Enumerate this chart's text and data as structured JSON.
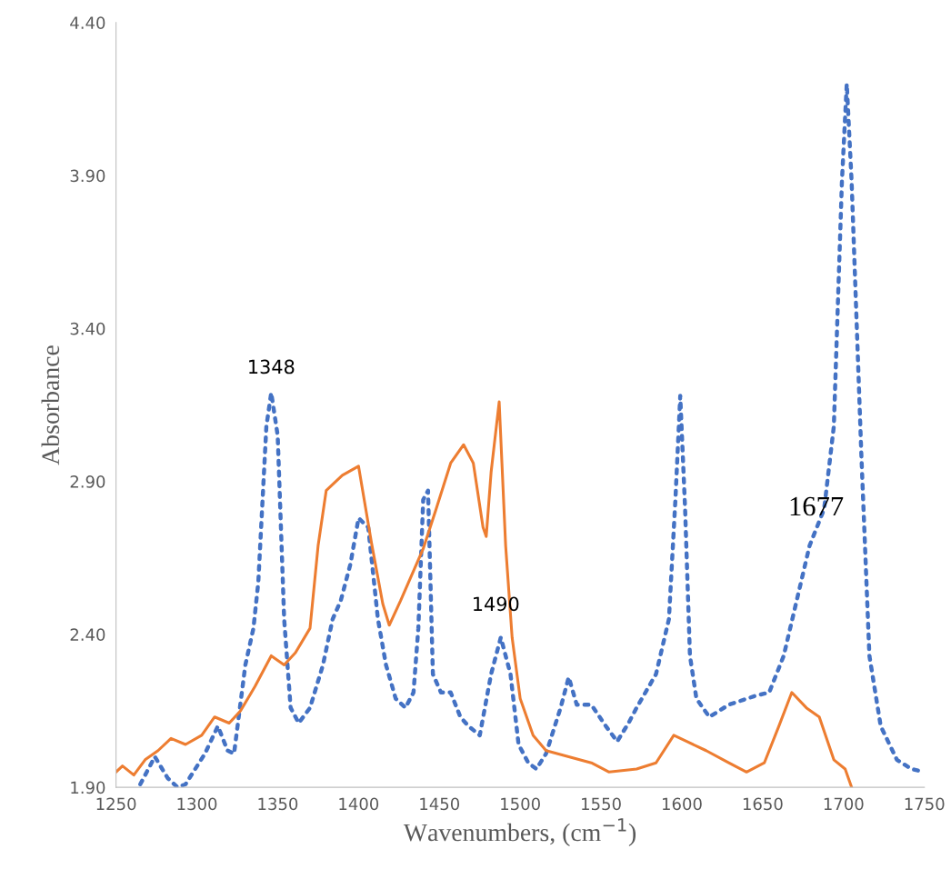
{
  "chart_data": {
    "type": "line",
    "xlabel": "Wavenumbers, (cm$^{−1}$)",
    "ylabel": "Absorbance",
    "xlim": [
      1250,
      1750
    ],
    "xticks": [
      1250,
      1300,
      1350,
      1400,
      1450,
      1500,
      1550,
      1600,
      1650,
      1700,
      1750
    ],
    "ylim": [
      1.9,
      4.4
    ],
    "yticks": [
      {
        "value": 1.9,
        "label": "1.90"
      },
      {
        "value": 2.4,
        "label": "2.40"
      },
      {
        "value": 2.9,
        "label": "2.90"
      },
      {
        "value": 3.4,
        "label": "3.40"
      },
      {
        "value": 3.9,
        "label": "3.90"
      },
      {
        "value": 4.4,
        "label": "4.40"
      }
    ],
    "grid": false,
    "marker": "none",
    "series": [
      {
        "color": "#4472c4",
        "line_style": "dotted",
        "x": [
          1265,
          1274,
          1282,
          1288,
          1293,
          1305,
          1313,
          1319,
          1323,
          1330,
          1335,
          1338,
          1343,
          1346,
          1350,
          1354,
          1358,
          1363,
          1370,
          1378,
          1384,
          1389,
          1395,
          1400,
          1406,
          1412,
          1417,
          1423,
          1429,
          1434,
          1437,
          1440,
          1443,
          1446,
          1451,
          1457,
          1463,
          1468,
          1475,
          1482,
          1488,
          1494,
          1499,
          1505,
          1510,
          1516,
          1525,
          1530,
          1535,
          1544,
          1553,
          1560,
          1567,
          1572,
          1584,
          1592,
          1596,
          1599,
          1602,
          1605,
          1609,
          1617,
          1629,
          1646,
          1654,
          1663,
          1671,
          1679,
          1688,
          1694,
          1699,
          1702,
          1705,
          1711,
          1716,
          1723,
          1733,
          1742,
          1750
        ],
        "values": [
          1.91,
          2.0,
          1.93,
          1.9,
          1.91,
          2.01,
          2.1,
          2.02,
          2.01,
          2.3,
          2.42,
          2.57,
          3.08,
          3.19,
          3.05,
          2.45,
          2.16,
          2.11,
          2.16,
          2.3,
          2.45,
          2.51,
          2.63,
          2.78,
          2.75,
          2.45,
          2.3,
          2.19,
          2.16,
          2.21,
          2.42,
          2.84,
          2.87,
          2.27,
          2.21,
          2.21,
          2.13,
          2.1,
          2.07,
          2.27,
          2.39,
          2.27,
          2.04,
          1.98,
          1.96,
          2.01,
          2.16,
          2.26,
          2.17,
          2.17,
          2.1,
          2.05,
          2.11,
          2.16,
          2.27,
          2.45,
          2.84,
          3.18,
          2.81,
          2.33,
          2.19,
          2.13,
          2.17,
          2.2,
          2.21,
          2.33,
          2.51,
          2.69,
          2.81,
          3.08,
          3.88,
          4.2,
          3.88,
          2.99,
          2.33,
          2.1,
          1.99,
          1.96,
          1.95
        ]
      },
      {
        "color": "#ed7d31",
        "line_style": "solid",
        "x": [
          1250,
          1254,
          1261,
          1268,
          1276,
          1284,
          1293,
          1303,
          1311,
          1320,
          1327,
          1336,
          1346,
          1354,
          1361,
          1370,
          1375,
          1380,
          1390,
          1400,
          1408,
          1415,
          1419,
          1426,
          1440,
          1448,
          1457,
          1465,
          1471,
          1477,
          1479,
          1482,
          1487,
          1491,
          1495,
          1500,
          1508,
          1516,
          1530,
          1544,
          1555,
          1572,
          1584,
          1595,
          1603,
          1615,
          1629,
          1640,
          1651,
          1660,
          1668,
          1677,
          1685,
          1694,
          1701,
          1705
        ],
        "values": [
          1.95,
          1.97,
          1.94,
          1.99,
          2.02,
          2.06,
          2.04,
          2.07,
          2.13,
          2.11,
          2.15,
          2.23,
          2.33,
          2.3,
          2.34,
          2.42,
          2.69,
          2.87,
          2.92,
          2.95,
          2.7,
          2.5,
          2.43,
          2.51,
          2.68,
          2.81,
          2.96,
          3.02,
          2.96,
          2.75,
          2.72,
          2.93,
          3.16,
          2.69,
          2.39,
          2.19,
          2.07,
          2.02,
          2.0,
          1.98,
          1.95,
          1.96,
          1.98,
          2.07,
          2.05,
          2.02,
          1.98,
          1.95,
          1.98,
          2.1,
          2.21,
          2.16,
          2.13,
          1.99,
          1.96,
          1.9
        ]
      }
    ],
    "annotations": [
      {
        "text": "1348",
        "x": 1346,
        "y": 3.19
      },
      {
        "text": "1490",
        "x": 1488,
        "y": 2.39
      },
      {
        "text": "1677",
        "x": 1683,
        "y": 2.72
      }
    ]
  }
}
